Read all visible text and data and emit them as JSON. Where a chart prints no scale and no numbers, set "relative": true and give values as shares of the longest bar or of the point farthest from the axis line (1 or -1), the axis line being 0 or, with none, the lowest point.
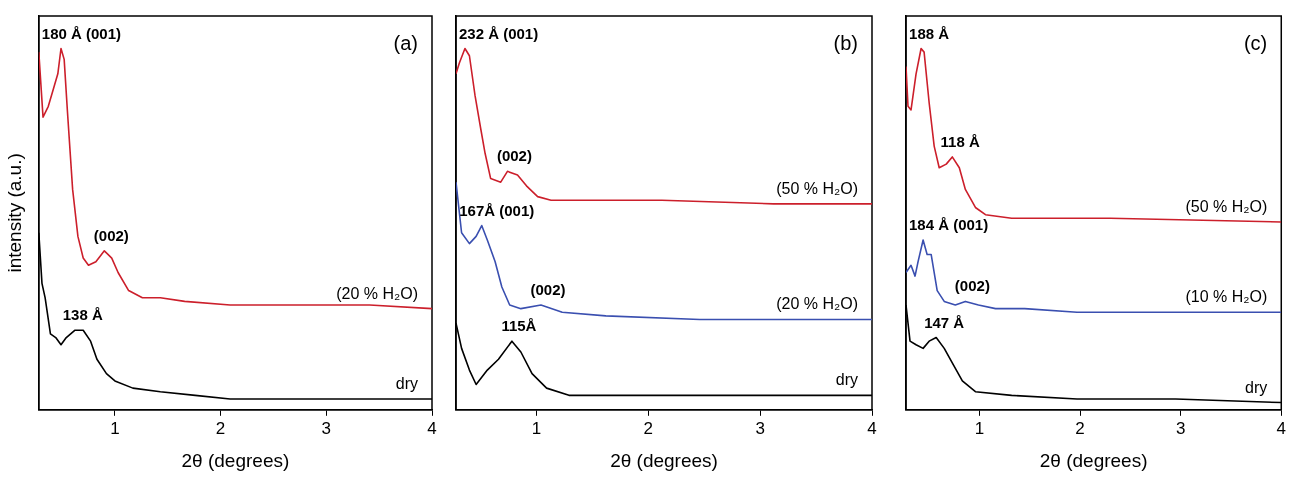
{
  "chart_data": [
    {
      "type": "line",
      "relative": true,
      "xlabel": "2θ (degrees)",
      "ylabel": "intensity (a.u.)",
      "xlim": [
        0.28,
        4
      ],
      "xticks": [
        1,
        2,
        3,
        4
      ],
      "grid": false,
      "legend": false,
      "marker": "none",
      "line_style": "solid",
      "annotations": [
        "(a)",
        {
          "text": "180 Å (001)",
          "x": 0.49,
          "y": 1.0
        },
        {
          "text": "(002)",
          "x": 0.9,
          "y": 0.44
        },
        {
          "text": "138 Å",
          "x": 0.62,
          "y": 0.22
        }
      ],
      "series": [
        {
          "name": "(20 % H₂O)",
          "color": "#cc1f2b",
          "x": [
            0.28,
            0.32,
            0.37,
            0.42,
            0.46,
            0.49,
            0.52,
            0.55,
            0.6,
            0.65,
            0.7,
            0.75,
            0.82,
            0.9,
            0.97,
            1.03,
            1.13,
            1.26,
            1.43,
            1.66,
            2.09,
            2.75,
            3.41,
            4.0
          ],
          "values": [
            0.99,
            0.81,
            0.84,
            0.89,
            0.93,
            1.0,
            0.97,
            0.83,
            0.61,
            0.48,
            0.42,
            0.4,
            0.41,
            0.44,
            0.42,
            0.38,
            0.33,
            0.31,
            0.31,
            0.3,
            0.29,
            0.29,
            0.29,
            0.28
          ]
        },
        {
          "name": "dry",
          "color": "#000000",
          "x": [
            0.28,
            0.31,
            0.34,
            0.39,
            0.44,
            0.49,
            0.54,
            0.62,
            0.7,
            0.77,
            0.83,
            0.92,
            1.0,
            1.17,
            1.43,
            1.76,
            2.09,
            3.08,
            4.0
          ],
          "values": [
            0.49,
            0.35,
            0.31,
            0.21,
            0.2,
            0.18,
            0.2,
            0.22,
            0.22,
            0.19,
            0.14,
            0.1,
            0.08,
            0.06,
            0.05,
            0.04,
            0.03,
            0.03,
            0.03
          ]
        }
      ]
    },
    {
      "type": "line",
      "relative": true,
      "xlabel": "2θ (degrees)",
      "xlim": [
        0.28,
        4
      ],
      "xticks": [
        1,
        2,
        3,
        4
      ],
      "grid": false,
      "legend": false,
      "marker": "none",
      "line_style": "solid",
      "annotations": [
        "(b)",
        {
          "text": "232 Å (001)",
          "x": 0.36,
          "y": 1.0
        },
        {
          "text": "(002)",
          "x": 0.74,
          "y": 0.66
        },
        {
          "text": "167Å (001)",
          "x": 0.51,
          "y": 0.51
        },
        {
          "text": "(002)",
          "x": 1.04,
          "y": 0.29
        },
        {
          "text": "115Å",
          "x": 0.78,
          "y": 0.19
        }
      ],
      "series": [
        {
          "name": "(50 % H₂O)",
          "color": "#cc1f2b",
          "x": [
            0.28,
            0.31,
            0.36,
            0.4,
            0.45,
            0.5,
            0.54,
            0.59,
            0.68,
            0.74,
            0.83,
            0.91,
            1.01,
            1.13,
            1.46,
            2.12,
            3.12,
            4.0
          ],
          "values": [
            0.93,
            0.96,
            1.0,
            0.98,
            0.87,
            0.78,
            0.71,
            0.64,
            0.63,
            0.66,
            0.65,
            0.62,
            0.59,
            0.58,
            0.58,
            0.58,
            0.57,
            0.57
          ]
        },
        {
          "name": "(20 % H₂O)",
          "color": "#3a4fb0",
          "x": [
            0.28,
            0.33,
            0.4,
            0.46,
            0.51,
            0.56,
            0.63,
            0.69,
            0.76,
            0.86,
            1.04,
            1.23,
            1.62,
            2.46,
            4.0
          ],
          "values": [
            0.63,
            0.49,
            0.46,
            0.48,
            0.51,
            0.47,
            0.41,
            0.34,
            0.29,
            0.28,
            0.29,
            0.27,
            0.26,
            0.25,
            0.25
          ]
        },
        {
          "name": "dry",
          "color": "#000000",
          "x": [
            0.28,
            0.33,
            0.4,
            0.46,
            0.56,
            0.66,
            0.78,
            0.86,
            0.96,
            1.09,
            1.29,
            1.79,
            2.79,
            4.0
          ],
          "values": [
            0.24,
            0.17,
            0.11,
            0.07,
            0.11,
            0.14,
            0.19,
            0.16,
            0.1,
            0.06,
            0.04,
            0.04,
            0.04,
            0.04
          ]
        }
      ]
    },
    {
      "type": "line",
      "relative": true,
      "xlabel": "2θ (degrees)",
      "xlim": [
        0.27,
        4
      ],
      "xticks": [
        1,
        2,
        3,
        4
      ],
      "grid": false,
      "legend": false,
      "marker": "none",
      "line_style": "solid",
      "annotations": [
        "(c)",
        {
          "text": "188 Å",
          "x": 0.42,
          "y": 1.0
        },
        {
          "text": "118 Å",
          "x": 0.73,
          "y": 0.7
        },
        {
          "text": "184 Å (001)",
          "x": 0.44,
          "y": 0.47
        },
        {
          "text": "(002)",
          "x": 0.86,
          "y": 0.3
        },
        {
          "text": "147 Å",
          "x": 0.57,
          "y": 0.2
        }
      ],
      "series": [
        {
          "name": "(50 % H₂O)",
          "color": "#cc1f2b",
          "x": [
            0.27,
            0.29,
            0.32,
            0.37,
            0.42,
            0.45,
            0.5,
            0.55,
            0.6,
            0.67,
            0.73,
            0.8,
            0.86,
            0.96,
            1.06,
            1.32,
            2.3,
            4.0
          ],
          "values": [
            0.95,
            0.84,
            0.83,
            0.93,
            1.0,
            0.99,
            0.85,
            0.73,
            0.67,
            0.68,
            0.7,
            0.67,
            0.61,
            0.56,
            0.54,
            0.53,
            0.53,
            0.52
          ]
        },
        {
          "name": "(10 % H₂O)",
          "color": "#3a4fb0",
          "x": [
            0.27,
            0.32,
            0.36,
            0.39,
            0.44,
            0.48,
            0.52,
            0.58,
            0.65,
            0.76,
            0.86,
            0.99,
            1.16,
            1.45,
            1.97,
            4.0
          ],
          "values": [
            0.38,
            0.4,
            0.37,
            0.41,
            0.47,
            0.43,
            0.43,
            0.33,
            0.3,
            0.29,
            0.3,
            0.29,
            0.28,
            0.28,
            0.27,
            0.27
          ]
        },
        {
          "name": "dry",
          "color": "#000000",
          "x": [
            0.27,
            0.31,
            0.37,
            0.44,
            0.5,
            0.57,
            0.65,
            0.73,
            0.83,
            0.96,
            1.32,
            1.97,
            2.95,
            4.0
          ],
          "values": [
            0.29,
            0.19,
            0.18,
            0.17,
            0.19,
            0.2,
            0.17,
            0.13,
            0.08,
            0.05,
            0.04,
            0.03,
            0.03,
            0.02
          ]
        }
      ]
    }
  ]
}
